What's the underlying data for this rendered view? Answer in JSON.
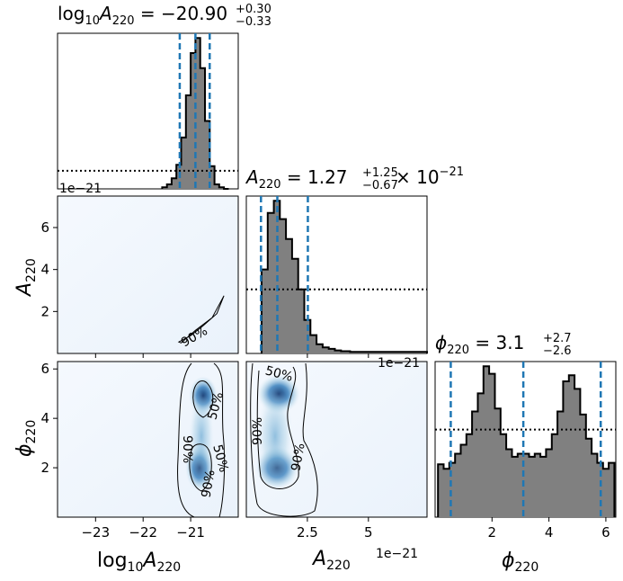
{
  "chart_data": [
    {
      "panel": "hist-logA",
      "type": "histogram",
      "title": {
        "base": "log",
        "sub1": "10",
        "var": "A",
        "sub2": "220",
        "value": " = −20.90",
        "sup": "+0.30",
        "subv": "−0.33"
      },
      "xlim": [
        -23.8,
        -20.0
      ],
      "quantiles": [
        -21.23,
        -20.9,
        -20.6
      ],
      "posterior": {
        "x": [
          -21.55,
          -21.45,
          -21.35,
          -21.25,
          -21.15,
          -21.05,
          -20.95,
          -20.85,
          -20.75,
          -20.65,
          -20.55,
          -20.45,
          -20.35,
          -20.25
        ],
        "values": [
          0.01,
          0.03,
          0.07,
          0.16,
          0.34,
          0.62,
          0.9,
          1.0,
          0.8,
          0.45,
          0.15,
          0.03,
          0.01,
          0.0
        ]
      },
      "prior_level": 0.12,
      "offset_text": "1e−21"
    },
    {
      "panel": "hist-A",
      "type": "histogram",
      "title": {
        "var": "A",
        "sub2": "220",
        "value": " = 1.27",
        "sup": "+1.25",
        "subv": "−0.67",
        "tail": " × 10",
        "exp": "−21"
      },
      "xlim": [
        0,
        7.4
      ],
      "quantiles": [
        0.6,
        1.27,
        2.52
      ],
      "posterior": {
        "x": [
          0.75,
          1.0,
          1.25,
          1.5,
          1.75,
          2.0,
          2.25,
          2.5,
          2.75,
          3.0,
          3.25,
          3.5,
          3.75,
          4.0,
          4.5,
          5.0
        ],
        "values": [
          0.55,
          0.92,
          1.0,
          0.88,
          0.75,
          0.62,
          0.42,
          0.22,
          0.12,
          0.06,
          0.04,
          0.03,
          0.02,
          0.015,
          0.01,
          0.01
        ],
        "tail_level": 0.01
      },
      "prior_level": 0.42,
      "offset_text": "1e−21"
    },
    {
      "panel": "hist-phi",
      "type": "histogram",
      "title": {
        "var": "ϕ",
        "sub2": "220",
        "value": " = 3.1",
        "sup": "+2.7",
        "subv": "−2.6"
      },
      "xlim": [
        0,
        6.35
      ],
      "quantiles": [
        0.55,
        3.1,
        5.82
      ],
      "posterior": {
        "x": [
          0.2,
          0.4,
          0.6,
          0.8,
          1.0,
          1.2,
          1.4,
          1.6,
          1.8,
          2.0,
          2.2,
          2.4,
          2.6,
          2.8,
          3.0,
          3.2,
          3.4,
          3.6,
          3.8,
          4.0,
          4.2,
          4.4,
          4.6,
          4.8,
          5.0,
          5.2,
          5.4,
          5.6,
          5.8,
          6.0,
          6.2
        ],
        "values": [
          0.35,
          0.32,
          0.36,
          0.42,
          0.48,
          0.55,
          0.7,
          0.82,
          1.0,
          0.95,
          0.72,
          0.55,
          0.45,
          0.4,
          0.42,
          0.42,
          0.4,
          0.42,
          0.4,
          0.45,
          0.55,
          0.7,
          0.9,
          0.94,
          0.85,
          0.68,
          0.52,
          0.42,
          0.36,
          0.32,
          0.36
        ]
      },
      "prior_level": 0.58
    },
    {
      "panel": "contour-logA-A",
      "type": "contour",
      "xlim": [
        -23.8,
        -20.0
      ],
      "ylim": [
        0,
        7.5
      ],
      "yticks": [
        2,
        4,
        6
      ],
      "ylabel": {
        "var": "A",
        "sub": "220"
      },
      "contours": [
        {
          "label": "90%",
          "x": [
            -21.25,
            -21.0,
            -20.75,
            -20.45,
            -20.3,
            -20.55,
            -20.9,
            -21.2
          ],
          "y": [
            0.55,
            0.85,
            1.3,
            1.9,
            2.75,
            1.7,
            1.1,
            0.5
          ]
        }
      ]
    },
    {
      "panel": "contour-logA-phi",
      "type": "contour",
      "xlim": [
        -23.8,
        -20.0
      ],
      "ylim": [
        0,
        6.3
      ],
      "xticks": [
        -23,
        -22,
        -21
      ],
      "yticks": [
        2,
        4,
        6
      ],
      "xlabel": {
        "base": "log",
        "sub1": "10",
        "var": "A",
        "sub2": "220"
      },
      "ylabel": {
        "var": "ϕ",
        "sub": "220"
      },
      "contours": [
        {
          "label": "50%"
        },
        {
          "label": "90%"
        },
        {
          "label": "50%"
        },
        {
          "label": "90%"
        }
      ]
    },
    {
      "panel": "contour-A-phi",
      "type": "contour",
      "xlim": [
        0,
        7.4
      ],
      "ylim": [
        0,
        6.3
      ],
      "xticks": [
        2.5,
        5.0
      ],
      "xlabel": {
        "var": "A",
        "sub": "220"
      },
      "offset_text": "1e−21",
      "contours": [
        {
          "label": "50%"
        },
        {
          "label": "90%"
        },
        {
          "label": "90%"
        }
      ]
    },
    {
      "panel": "phi-axis",
      "xticks": [
        2,
        4,
        6
      ],
      "xlabel": {
        "var": "ϕ",
        "sub": "220"
      }
    }
  ],
  "colors": {
    "quantile": "#1f77b4",
    "hist_fill": "#808080",
    "contour_dark": "#08306b"
  }
}
